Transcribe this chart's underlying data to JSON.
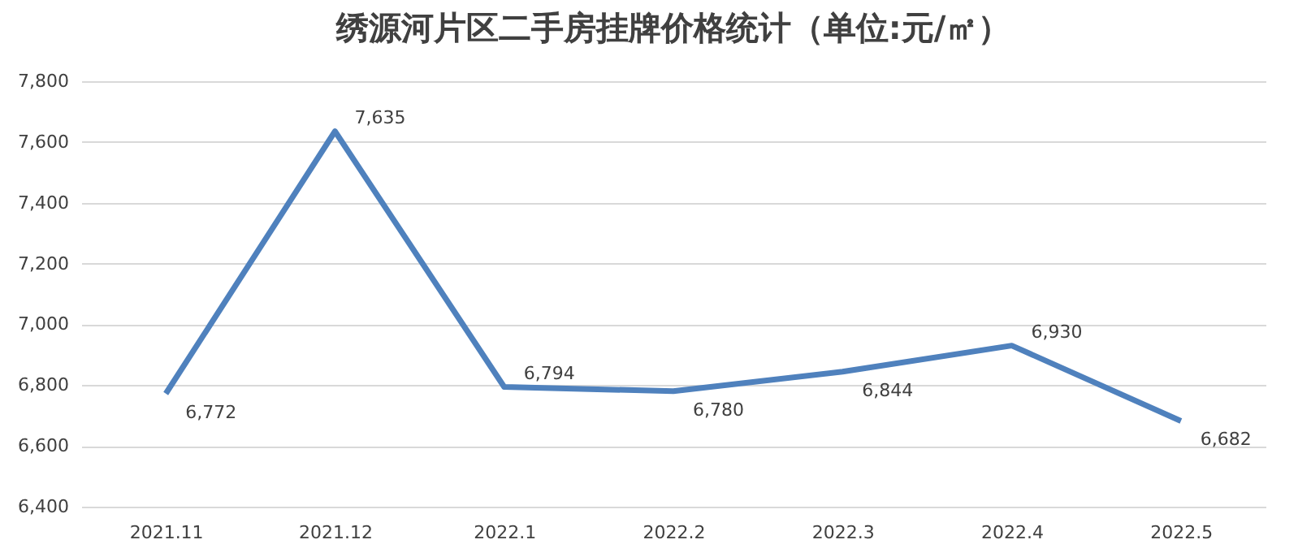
{
  "chart_data": {
    "type": "line",
    "title": "绣源河片区二手房挂牌价格统计（单位:元/㎡）",
    "categories": [
      "2021.11",
      "2021.12",
      "2022.1",
      "2022.2",
      "2022.3",
      "2022.4",
      "2022.5"
    ],
    "series": [
      {
        "color": "#4f81bd",
        "values": [
          6772,
          7635,
          6794,
          6780,
          6844,
          6930,
          6682
        ],
        "value_labels": [
          "6,772",
          "7,635",
          "6,794",
          "6,780",
          "6,844",
          "6,930",
          "6,682"
        ]
      }
    ],
    "ylim": [
      6400,
      7800
    ],
    "yticks": [
      {
        "value": 6400,
        "label": "6,400"
      },
      {
        "value": 6600,
        "label": "6,600"
      },
      {
        "value": 6800,
        "label": "6,800"
      },
      {
        "value": 7000,
        "label": "7,000"
      },
      {
        "value": 7200,
        "label": "7,200"
      },
      {
        "value": 7400,
        "label": "7,400"
      },
      {
        "value": 7600,
        "label": "7,600"
      },
      {
        "value": 7800,
        "label": "7,800"
      }
    ],
    "grid": "y",
    "marker": "none",
    "line_style": "solid"
  }
}
